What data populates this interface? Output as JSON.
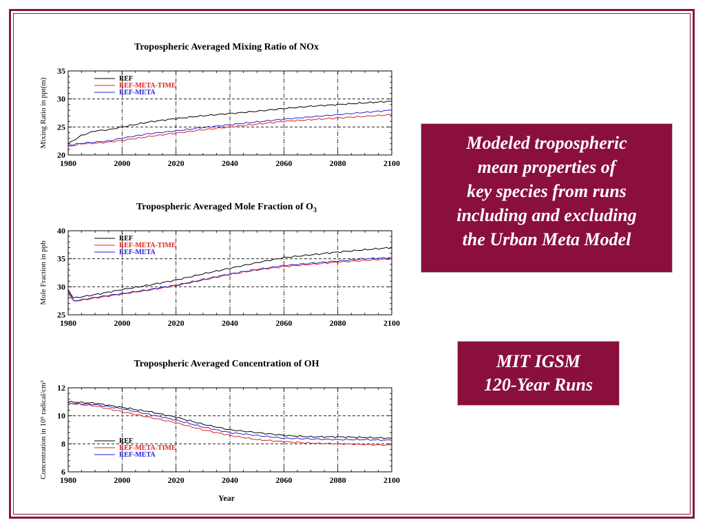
{
  "slide": {
    "modeled_box": {
      "lines": [
        "Modeled tropospheric",
        "mean properties of",
        "key species from runs",
        "including and excluding",
        "the Urban Meta Model"
      ]
    },
    "mit_box": {
      "lines": [
        "MIT IGSM",
        "120-Year Runs"
      ]
    }
  },
  "colors": {
    "frame": "#8a1538",
    "box_bg": "#8a0f3c",
    "REF": "#000000",
    "REF-META-TIME": "#e02020",
    "REF-META": "#2a1fcf"
  },
  "chart_data": [
    {
      "type": "line",
      "title": "Tropospheric Averaged Mixing Ratio of NOx",
      "title_sub": "",
      "ylabel": "Mixing Ratio in ppt(m)",
      "xlabel": "",
      "xlim": [
        1980,
        2100
      ],
      "ylim": [
        20,
        35
      ],
      "x_ticks": [
        1980,
        2000,
        2020,
        2040,
        2060,
        2080,
        2100
      ],
      "y_ticks": [
        20,
        25,
        30,
        35
      ],
      "dashed_y": [
        25,
        30
      ],
      "legend_position": "top-left",
      "x": [
        1980,
        1985,
        1990,
        1995,
        2000,
        2010,
        2020,
        2030,
        2040,
        2050,
        2060,
        2070,
        2080,
        2090,
        2100
      ],
      "series": [
        {
          "name": "REF",
          "values": [
            22.0,
            23.5,
            24.3,
            24.5,
            25.0,
            25.9,
            26.5,
            27.0,
            27.4,
            27.8,
            28.3,
            28.7,
            29.0,
            29.3,
            29.6
          ]
        },
        {
          "name": "REF-META-TIME",
          "values": [
            21.5,
            22.0,
            22.1,
            22.3,
            22.6,
            23.3,
            23.9,
            24.5,
            25.0,
            25.5,
            26.0,
            26.3,
            26.6,
            26.9,
            27.2
          ]
        },
        {
          "name": "REF-META",
          "values": [
            21.7,
            22.1,
            22.3,
            22.5,
            23.0,
            23.8,
            24.3,
            24.9,
            25.4,
            25.9,
            26.4,
            26.8,
            27.2,
            27.6,
            28.0
          ]
        }
      ]
    },
    {
      "type": "line",
      "title": "Tropospheric Averaged Mole Fraction of O",
      "title_sub": "3",
      "ylabel": "Mole Fraction in ppb",
      "xlabel": "",
      "xlim": [
        1980,
        2100
      ],
      "ylim": [
        25,
        40
      ],
      "x_ticks": [
        1980,
        2000,
        2020,
        2040,
        2060,
        2080,
        2100
      ],
      "y_ticks": [
        25,
        30,
        35,
        40
      ],
      "dashed_y": [
        30,
        35
      ],
      "legend_position": "top-left",
      "x": [
        1980,
        1982,
        1985,
        1990,
        2000,
        2010,
        2020,
        2030,
        2040,
        2050,
        2060,
        2070,
        2080,
        2090,
        2100
      ],
      "series": [
        {
          "name": "REF",
          "values": [
            29.5,
            28.0,
            28.2,
            28.6,
            29.5,
            30.3,
            31.2,
            32.3,
            33.3,
            34.3,
            35.2,
            35.7,
            36.2,
            36.6,
            37.0
          ]
        },
        {
          "name": "REF-META-TIME",
          "values": [
            29.0,
            27.4,
            27.6,
            28.0,
            28.7,
            29.4,
            30.2,
            31.2,
            32.2,
            33.0,
            33.6,
            34.0,
            34.4,
            34.7,
            35.0
          ]
        },
        {
          "name": "REF-META",
          "values": [
            29.2,
            27.5,
            27.7,
            28.1,
            28.8,
            29.5,
            30.3,
            31.3,
            32.3,
            33.1,
            33.8,
            34.2,
            34.6,
            35.0,
            35.2
          ]
        }
      ]
    },
    {
      "type": "line",
      "title": "Tropospheric Averaged Concentration of OH",
      "title_sub": "",
      "ylabel": "Concentration in 10⁵ radical/cm³",
      "xlabel": "Year",
      "xlim": [
        1980,
        2100
      ],
      "ylim": [
        6,
        12
      ],
      "x_ticks": [
        1980,
        2000,
        2020,
        2040,
        2060,
        2080,
        2100
      ],
      "y_ticks": [
        6,
        8,
        10,
        12
      ],
      "dashed_y": [
        8,
        10
      ],
      "legend_position": "bottom-left",
      "x": [
        1980,
        1990,
        2000,
        2010,
        2020,
        2030,
        2040,
        2050,
        2060,
        2070,
        2080,
        2090,
        2100
      ],
      "series": [
        {
          "name": "REF",
          "values": [
            11.0,
            10.9,
            10.6,
            10.3,
            9.9,
            9.4,
            9.0,
            8.8,
            8.6,
            8.5,
            8.5,
            8.45,
            8.4
          ]
        },
        {
          "name": "REF-META-TIME",
          "values": [
            10.9,
            10.7,
            10.3,
            9.9,
            9.5,
            9.0,
            8.6,
            8.3,
            8.15,
            8.05,
            8.0,
            7.95,
            7.9
          ]
        },
        {
          "name": "REF-META",
          "values": [
            10.9,
            10.8,
            10.5,
            10.1,
            9.7,
            9.2,
            8.8,
            8.6,
            8.4,
            8.35,
            8.3,
            8.3,
            8.25
          ]
        }
      ]
    }
  ]
}
